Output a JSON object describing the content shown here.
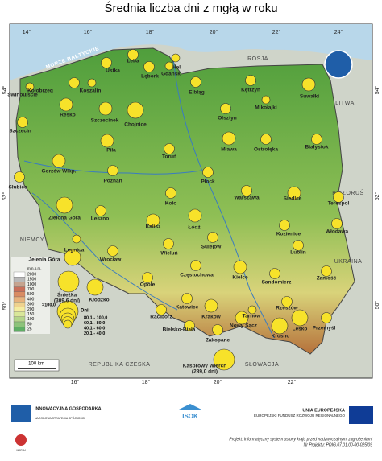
{
  "title": "Średnia liczba dni z mgłą w roku",
  "sea": "MORZE BAŁTYCKIE",
  "countries": [
    "ROSJA",
    "LITWA",
    "BIAŁORUŚ",
    "UKRAINA",
    "NIEMCY",
    "REPUBLIKA CZESKA",
    "SŁOWACJA"
  ],
  "graticule": {
    "top": [
      "14°",
      "16°",
      "18°",
      "20°",
      "22°",
      "24°"
    ],
    "bottom": [
      "16°",
      "18°",
      "20°",
      "22°"
    ],
    "left": [
      "54°",
      "52°",
      "50°"
    ],
    "right": [
      "54°",
      "52°",
      "50°"
    ]
  },
  "elevation_legend": {
    "unit": "m n.p.m.",
    "levels": [
      "2000",
      "1500",
      "1000",
      "700",
      "500",
      "400",
      "300",
      "200",
      "150",
      "100",
      "50",
      "25"
    ]
  },
  "fog_legend": {
    "title": "Dni:",
    "classes": [
      ">100,0",
      "80,1 - 100,0",
      "60,1 - 80,0",
      "40,1 - 60,0",
      "20,1 - 40,0"
    ]
  },
  "scale_bar": "100 km",
  "stations": [
    {
      "name": "Świnoujście",
      "class": "20,1 - 40,0"
    },
    {
      "name": "Kołobrzeg",
      "class": "40,1 - 60,0"
    },
    {
      "name": "Koszalin",
      "class": "20,1 - 40,0"
    },
    {
      "name": "Ustka",
      "class": "40,1 - 60,0"
    },
    {
      "name": "Łeba",
      "class": "40,1 - 60,0"
    },
    {
      "name": "Hel",
      "class": "20,1 - 40,0"
    },
    {
      "name": "Gdańsk",
      "class": "20,1 - 40,0"
    },
    {
      "name": "Lębork",
      "class": "40,1 - 60,0"
    },
    {
      "name": "Elbląg",
      "class": "40,1 - 60,0"
    },
    {
      "name": "Kętrzyn",
      "class": "40,1 - 60,0"
    },
    {
      "name": "Suwałki",
      "class": "60,1 - 80,0"
    },
    {
      "name": "Mikołajki",
      "class": "20,1 - 40,0"
    },
    {
      "name": "Resko",
      "class": "60,1 - 80,0"
    },
    {
      "name": "Szczecinek",
      "class": "60,1 - 80,0"
    },
    {
      "name": "Chojnice",
      "class": "80,1 - 100,0"
    },
    {
      "name": "Olsztyn",
      "class": "40,1 - 60,0"
    },
    {
      "name": "Szczecin",
      "class": "40,1 - 60,0"
    },
    {
      "name": "Piła",
      "class": "60,1 - 80,0"
    },
    {
      "name": "Toruń",
      "class": "40,1 - 60,0"
    },
    {
      "name": "Mława",
      "class": "60,1 - 80,0"
    },
    {
      "name": "Ostrołęka",
      "class": "40,1 - 60,0"
    },
    {
      "name": "Białystok",
      "class": "40,1 - 60,0"
    },
    {
      "name": "Gorzów Wlkp.",
      "class": "60,1 - 80,0"
    },
    {
      "name": "Poznań",
      "class": "40,1 - 60,0"
    },
    {
      "name": "Płock",
      "class": "40,1 - 60,0"
    },
    {
      "name": "Słubice",
      "class": "40,1 - 60,0"
    },
    {
      "name": "Warszawa",
      "class": "40,1 - 60,0"
    },
    {
      "name": "Siedlce",
      "class": "60,1 - 80,0"
    },
    {
      "name": "Terespol",
      "class": "40,1 - 60,0"
    },
    {
      "name": "Zielona Góra",
      "class": "80,1 - 100,0"
    },
    {
      "name": "Leszno",
      "class": "40,1 - 60,0"
    },
    {
      "name": "Koło",
      "class": "40,1 - 60,0"
    },
    {
      "name": "Kalisz",
      "class": "60,1 - 80,0"
    },
    {
      "name": "Łódź",
      "class": "60,1 - 80,0"
    },
    {
      "name": "Kozienice",
      "class": "40,1 - 60,0"
    },
    {
      "name": "Włodawa",
      "class": "40,1 - 60,0"
    },
    {
      "name": "Legnica",
      "class": "20,1 - 40,0"
    },
    {
      "name": "Wieluń",
      "class": "40,1 - 60,0"
    },
    {
      "name": "Sulejów",
      "class": "40,1 - 60,0"
    },
    {
      "name": "Lublin",
      "class": "40,1 - 60,0"
    },
    {
      "name": "Jelenia Góra",
      "class": "80,1 - 100,0"
    },
    {
      "name": "Wrocław",
      "class": "40,1 - 60,0"
    },
    {
      "name": "Częstochowa",
      "class": "40,1 - 60,0"
    },
    {
      "name": "Kielce",
      "class": "60,1 - 80,0"
    },
    {
      "name": "Sandomierz",
      "class": "40,1 - 60,0"
    },
    {
      "name": "Zamość",
      "class": "40,1 - 60,0"
    },
    {
      "name": "Śnieżka",
      "note": "(309,6 dni)",
      "class": ">100,0"
    },
    {
      "name": "Kłodzko",
      "class": "80,1 - 100,0"
    },
    {
      "name": "Opole",
      "class": "40,1 - 60,0"
    },
    {
      "name": "Racibórz",
      "class": "40,1 - 60,0"
    },
    {
      "name": "Katowice",
      "class": "40,1 - 60,0"
    },
    {
      "name": "Kraków",
      "class": "60,1 - 80,0"
    },
    {
      "name": "Tarnów",
      "class": "20,1 - 40,0"
    },
    {
      "name": "Rzeszów",
      "class": "40,1 - 60,0"
    },
    {
      "name": "Przemyśl",
      "class": "40,1 - 60,0"
    },
    {
      "name": "Bielsko-Biała",
      "class": "40,1 - 60,0"
    },
    {
      "name": "Nowy Sącz",
      "class": "60,1 - 80,0"
    },
    {
      "name": "Krosno",
      "class": "80,1 - 100,0"
    },
    {
      "name": "Lesko",
      "class": "80,1 - 100,0"
    },
    {
      "name": "Zakopane",
      "class": "40,1 - 60,0"
    },
    {
      "name": "Kasprowy Wierch",
      "note": "(289,0 dni)",
      "class": ">100,0"
    }
  ],
  "footer": {
    "logo_left": "INNOWACYJNA GOSPODARKA",
    "logo_left_sub": "NARODOWA STRATEGIA SPÓJNOŚCI",
    "logo_bottom": "IMGW",
    "logo_center": "ISOK",
    "eu_title": "UNIA EUROPEJSKA",
    "eu_fund": "EUROPEJSKI FUNDUSZ ROZWOJU REGIONALNEGO",
    "project": "Projekt: Informatyczny system osłony kraju przed nadzwyczajnymi zagrożeniami",
    "project_no": "Nr Projektu: POIG.07.01.00-00-025/09"
  }
}
